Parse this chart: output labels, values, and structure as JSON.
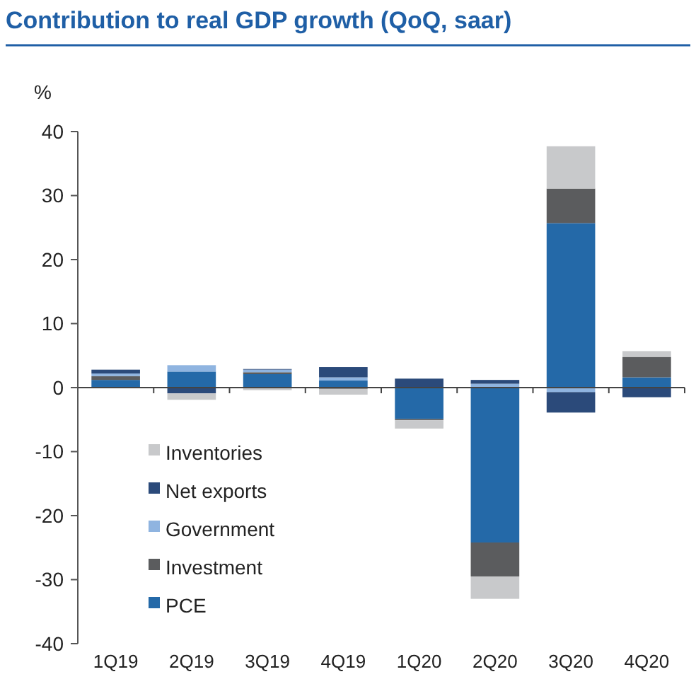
{
  "chart_data": {
    "type": "bar",
    "title": "Contribution to real GDP growth (QoQ, saar)",
    "ylabel": "%",
    "categories": [
      "1Q19",
      "2Q19",
      "3Q19",
      "4Q19",
      "1Q20",
      "2Q20",
      "3Q20",
      "4Q20"
    ],
    "stacked": true,
    "ylim": [
      -40,
      40
    ],
    "yticks": [
      -40,
      -30,
      -20,
      -10,
      0,
      10,
      20,
      30,
      40
    ],
    "legend": "bottom left",
    "series": [
      {
        "name": "PCE",
        "color": "#2469a8",
        "values": [
          1.2,
          2.5,
          2.1,
          1.1,
          -4.9,
          -24.2,
          25.7,
          1.6
        ]
      },
      {
        "name": "Investment",
        "color": "#5b5c5e",
        "values": [
          0.6,
          0,
          0.3,
          -0.2,
          -0.2,
          -5.3,
          5.4,
          3.2
        ]
      },
      {
        "name": "Government",
        "color": "#8fb4e0",
        "values": [
          0.4,
          1.0,
          0.4,
          0.5,
          0,
          0.6,
          -0.7,
          0
        ]
      },
      {
        "name": "Net exports",
        "color": "#2b4a7a",
        "values": [
          0.6,
          -0.9,
          0.1,
          1.6,
          1.4,
          0.6,
          -3.2,
          -1.5
        ]
      },
      {
        "name": "Inventories",
        "color": "#c8c9cb",
        "values": [
          null,
          -1.0,
          -0.4,
          -0.9,
          -1.3,
          -3.5,
          6.6,
          0.9
        ]
      }
    ]
  }
}
